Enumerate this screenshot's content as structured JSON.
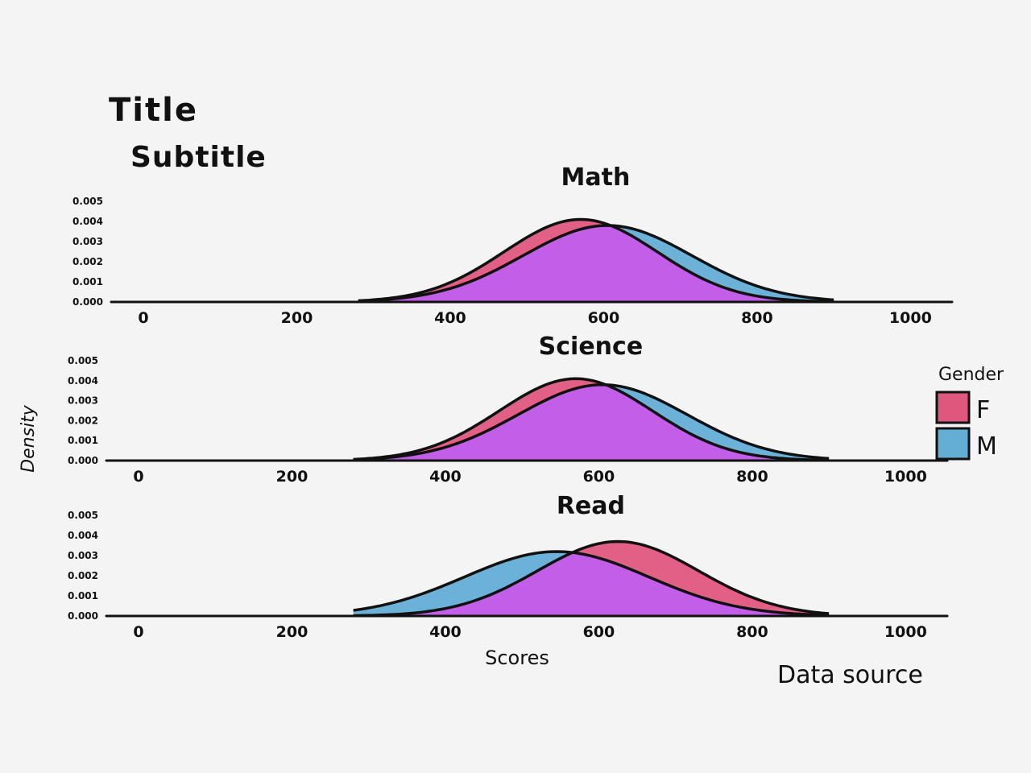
{
  "title": "Title",
  "subtitle": "Subtitle",
  "source": "Data source",
  "chart_data": {
    "type": "area",
    "ylabel": "Density",
    "xlabel": "Scores",
    "xlim": [
      0,
      1050
    ],
    "ylim": [
      0,
      0.005
    ],
    "x_ticks": [
      0,
      200,
      400,
      600,
      800,
      1000
    ],
    "y_ticks": [
      0.0,
      0.001,
      0.002,
      0.003,
      0.004,
      0.005
    ],
    "y_tick_labels": [
      "0.000",
      "0.001",
      "0.002",
      "0.003",
      "0.004",
      "0.005"
    ],
    "legend": {
      "title": "Gender",
      "entries": [
        {
          "key": "F",
          "color": "#e0577e"
        },
        {
          "key": "M",
          "color": "#64aed6"
        }
      ],
      "overlap_color": "#c25ee8",
      "placement": "right"
    },
    "panels": [
      {
        "title": "Math",
        "series": [
          {
            "name": "F",
            "mean": 570,
            "sd": 100,
            "peak": 0.0041
          },
          {
            "name": "M",
            "mean": 605,
            "sd": 110,
            "peak": 0.0038
          }
        ]
      },
      {
        "title": "Science",
        "series": [
          {
            "name": "F",
            "mean": 570,
            "sd": 100,
            "peak": 0.0041
          },
          {
            "name": "M",
            "mean": 605,
            "sd": 110,
            "peak": 0.0038
          }
        ]
      },
      {
        "title": "Read",
        "series": [
          {
            "name": "F",
            "mean": 625,
            "sd": 105,
            "peak": 0.0037
          },
          {
            "name": "M",
            "mean": 545,
            "sd": 120,
            "peak": 0.0032
          }
        ]
      }
    ]
  }
}
